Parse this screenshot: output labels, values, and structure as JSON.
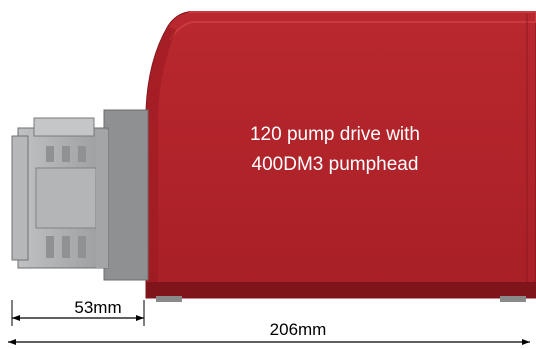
{
  "device": {
    "label_line1": "120 pump drive with",
    "label_line2": "400DM3 pumphead",
    "body_color": "#b1232a",
    "pumphead_color": "#a7a9ab"
  },
  "dimensions": {
    "pumphead_depth": "53mm",
    "total_depth": "206mm"
  }
}
